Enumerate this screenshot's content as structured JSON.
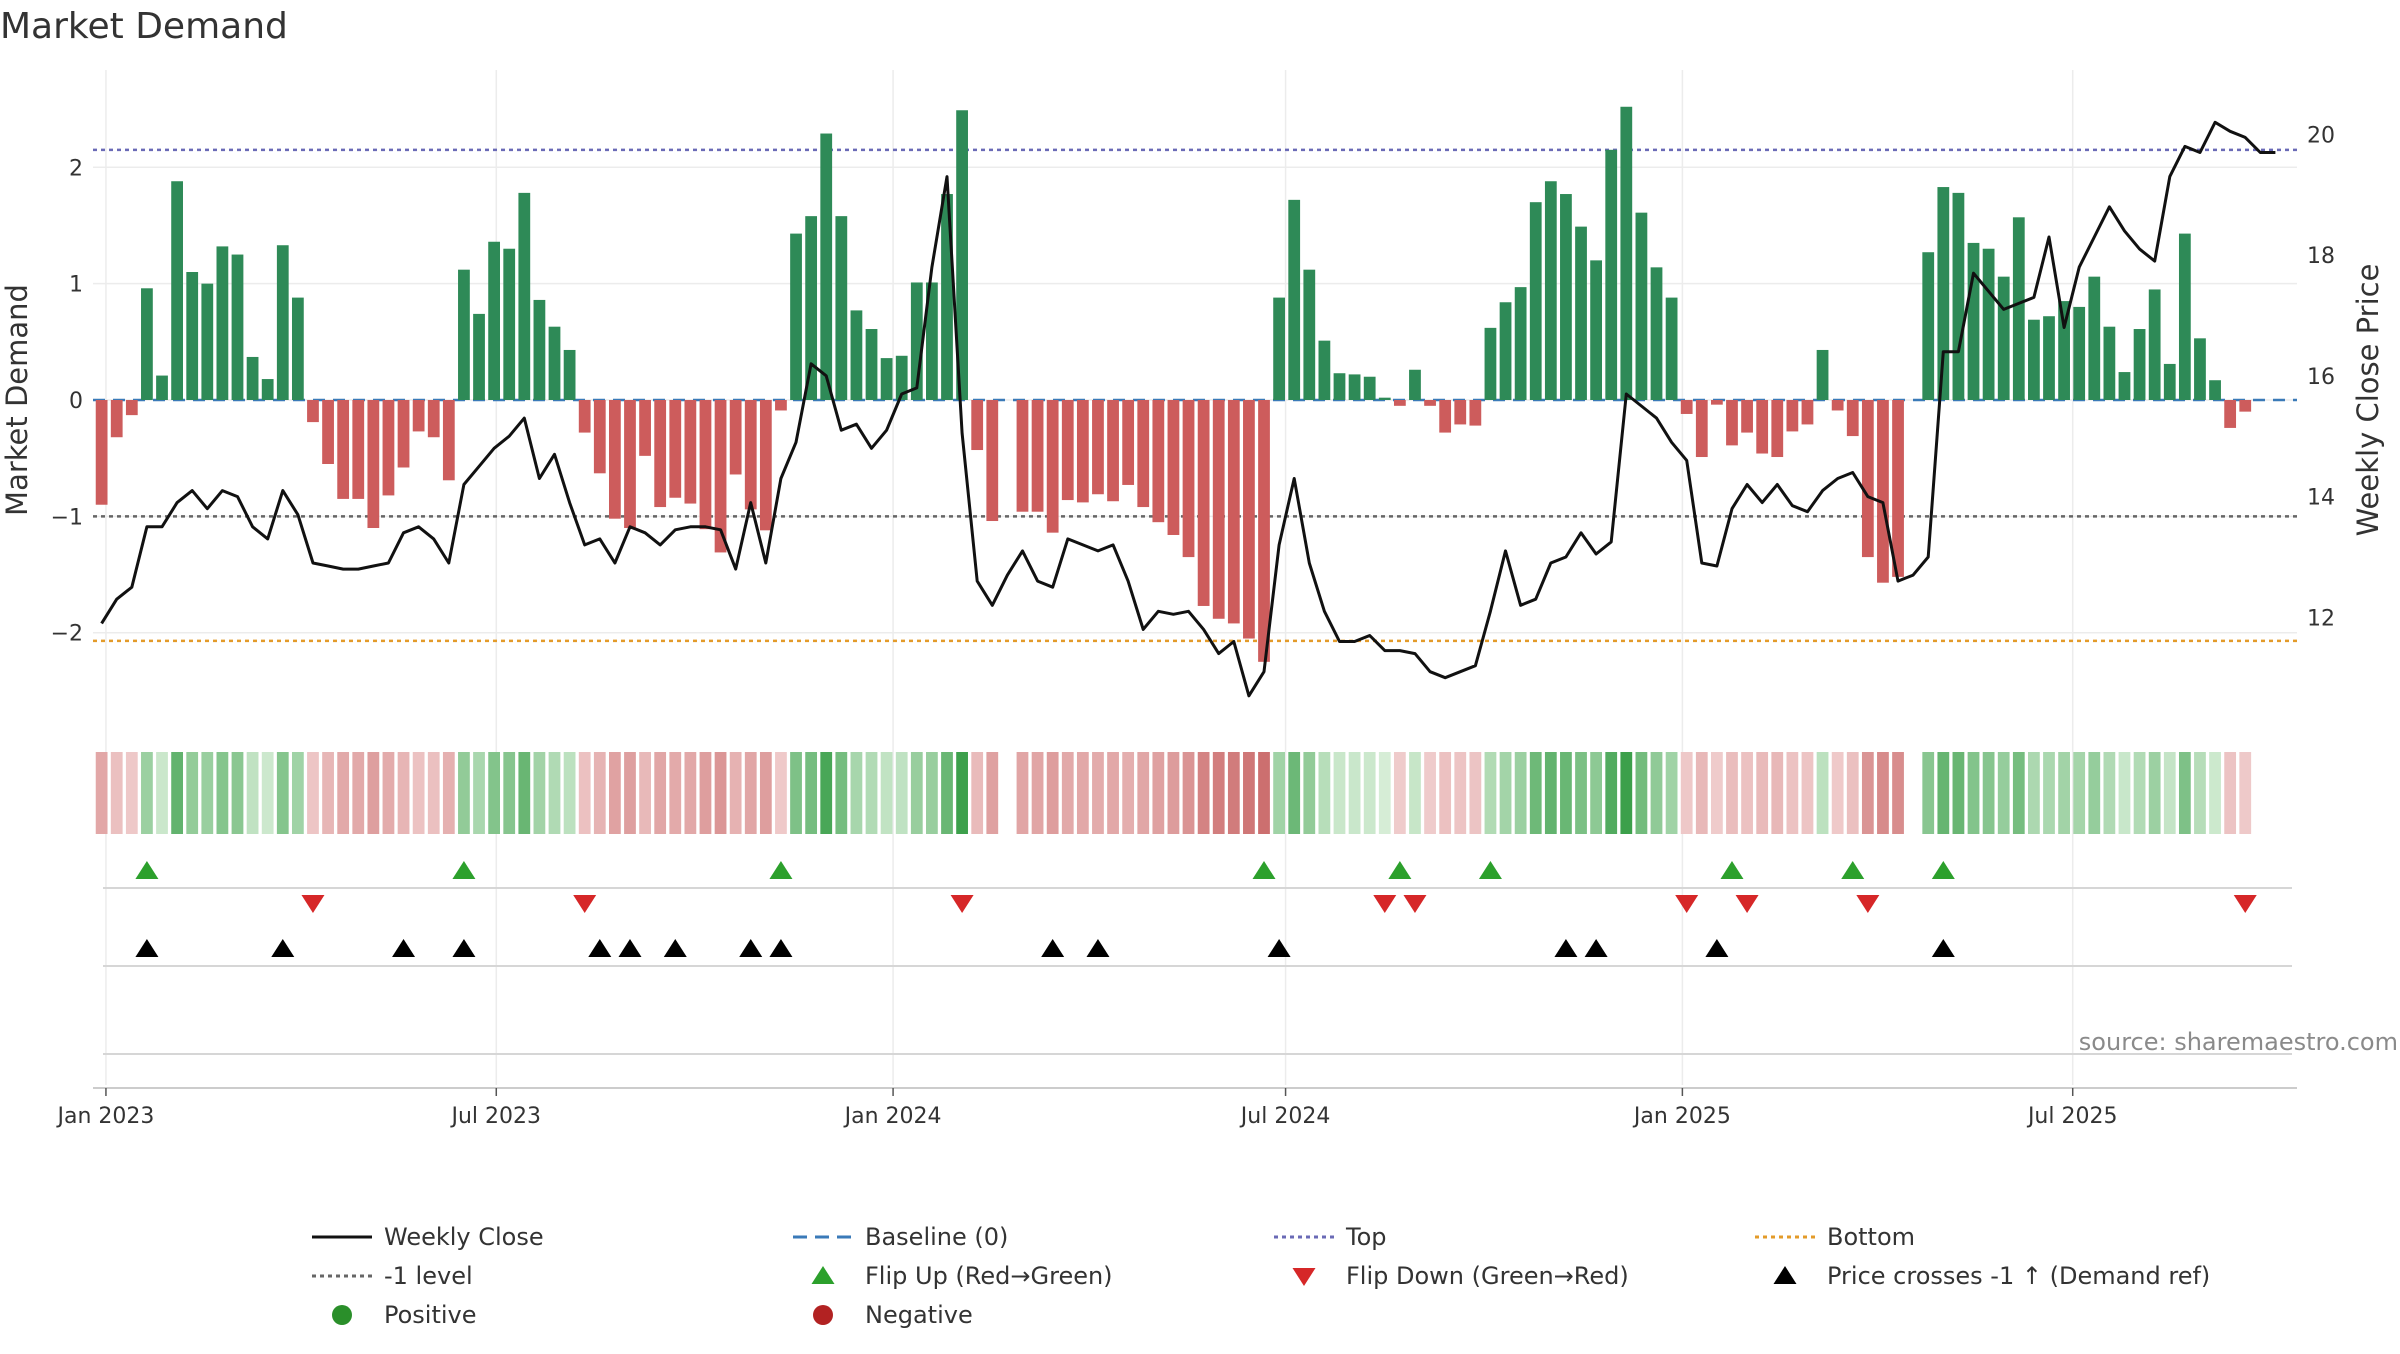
{
  "colors": {
    "positive_bar": "#2e8a57",
    "negative_bar": "#cd5c5c",
    "price_line": "#111111",
    "baseline": "#3a7ab8",
    "top_line": "#6a6ab6",
    "bottom_line": "#e39b2a",
    "minus_one_line": "#666666",
    "flip_up": "#2ca02c",
    "flip_down": "#d62728",
    "cross_marker": "#000000",
    "positive_dot": "#2a8f2a",
    "negative_dot": "#b22222",
    "grid": "#ececec"
  },
  "chart_data": {
    "type": "bar",
    "title": "Market Demand",
    "ylabel": "Market Demand",
    "y2label": "Weekly Close Price",
    "ylim": [
      -2.75,
      2.75
    ],
    "y_ticks": [
      -2,
      -1,
      0,
      1,
      2
    ],
    "y2lim": [
      10.3,
      20.9
    ],
    "y2_ticks": [
      12,
      14,
      16,
      18,
      20
    ],
    "x_start": "2022-12-26",
    "x_end": "2025-10-13",
    "x_ticks": [
      {
        "date": "2023-01-01",
        "label": "Jan 2023"
      },
      {
        "date": "2023-07-01",
        "label": "Jul 2023"
      },
      {
        "date": "2024-01-01",
        "label": "Jan 2024"
      },
      {
        "date": "2024-07-01",
        "label": "Jul 2024"
      },
      {
        "date": "2025-01-01",
        "label": "Jan 2025"
      },
      {
        "date": "2025-07-01",
        "label": "Jul 2025"
      }
    ],
    "first_week": "2022-12-30",
    "grid": true,
    "reference_lines": {
      "top": 2.15,
      "bottom": -2.07,
      "minus_one": -1.0,
      "baseline": 0
    },
    "demand": [
      -0.9,
      -0.32,
      -0.13,
      0.96,
      0.21,
      1.88,
      1.1,
      1.0,
      1.32,
      1.25,
      0.37,
      0.18,
      1.33,
      0.88,
      -0.19,
      -0.55,
      -0.85,
      -0.85,
      -1.1,
      -0.82,
      -0.58,
      -0.27,
      -0.32,
      -0.69,
      0,
      0,
      0,
      0,
      0,
      0,
      0,
      0,
      0,
      0,
      0,
      0,
      0,
      0,
      0,
      0,
      0,
      0,
      0,
      0,
      0,
      0,
      0,
      0,
      0,
      0,
      0,
      0,
      0,
      0,
      0,
      0,
      0,
      0,
      0,
      0,
      0,
      0,
      0,
      0,
      0,
      0,
      0,
      0,
      0,
      0,
      0,
      0,
      0,
      0,
      0,
      0,
      0,
      0,
      0,
      0,
      0,
      0,
      0,
      0,
      0,
      0,
      0,
      0,
      0,
      0,
      0,
      0,
      0,
      0,
      0,
      0,
      0,
      0,
      0,
      0,
      0,
      0,
      0,
      0,
      0,
      0,
      0,
      0,
      0,
      0,
      0,
      0,
      0,
      0,
      0,
      0,
      0,
      0,
      0,
      0,
      0,
      0,
      0,
      0,
      0,
      0,
      0,
      0,
      0,
      0,
      0,
      0,
      0,
      0,
      0,
      0,
      0,
      0,
      0,
      0,
      0,
      0,
      0,
      0,
      0,
      0,
      0,
      0,
      0,
      0,
      0
    ],
    "demand_values": [
      -0.9,
      -0.32,
      -0.13,
      0.96,
      0.21,
      1.88,
      1.1,
      1.0,
      1.32,
      1.25,
      0.37,
      0.18,
      1.33,
      0.88,
      -0.19,
      -0.55,
      -0.85,
      -0.85,
      -1.1,
      -0.82,
      -0.58,
      -0.27,
      -0.32,
      -0.69,
      1.12,
      0.74,
      1.36,
      1.3,
      1.78,
      0.86,
      0.63,
      0.43,
      -0.28,
      -0.63,
      -1.02,
      -1.1,
      -0.48,
      -0.92,
      -0.84,
      -0.89,
      -1.11,
      -1.31,
      -0.64,
      -0.94,
      -1.12,
      -0.09,
      1.43,
      1.58,
      2.29,
      1.58,
      0.77,
      0.61,
      0.36,
      0.38,
      1.01,
      1.01,
      1.77,
      2.49,
      -0.43,
      -1.04,
      0,
      -0.96,
      -0.96,
      -1.14,
      -0.86,
      -0.88,
      -0.81,
      -0.87,
      -0.73,
      -0.92,
      -1.05,
      -1.16,
      -1.35,
      -1.77,
      -1.88,
      -1.92,
      -2.05,
      -2.25,
      0.88,
      1.72,
      1.12,
      0.51,
      0.23,
      0.22,
      0.2,
      0.02,
      -0.05,
      0.26,
      -0.05,
      -0.28,
      -0.21,
      -0.22,
      0.62,
      0.84,
      0.97,
      1.7,
      1.88,
      1.77,
      1.49,
      1.2,
      2.15,
      2.52,
      1.61,
      1.14,
      0.88,
      -0.12,
      -0.49,
      -0.04,
      -0.39,
      -0.28,
      -0.46,
      -0.49,
      -0.27,
      -0.21,
      0.43,
      -0.09,
      -0.31,
      -1.35,
      -1.57,
      -1.52,
      0,
      1.27,
      1.83,
      1.78,
      1.35,
      1.3,
      1.06,
      1.57,
      0.69,
      0.72,
      0.85,
      0.8,
      1.06,
      0.63,
      0.24,
      0.61,
      0.95,
      0.31,
      1.43,
      0.53,
      0.17,
      -0.24,
      -0.1
    ],
    "price": [
      11.9,
      12.3,
      12.5,
      13.5,
      13.5,
      13.9,
      14.1,
      13.8,
      14.1,
      14.0,
      13.5,
      13.3,
      14.1,
      13.7,
      12.9,
      12.85,
      12.8,
      12.8,
      12.85,
      12.9,
      13.4,
      13.5,
      13.3,
      12.9,
      14.2,
      14.5,
      14.8,
      15.0,
      15.3,
      14.3,
      14.7,
      13.9,
      13.2,
      13.3,
      12.9,
      13.5,
      13.4,
      13.2,
      13.45,
      13.5,
      13.5,
      13.45,
      12.8,
      13.9,
      12.9,
      14.3,
      14.9,
      16.2,
      16.0,
      15.1,
      15.2,
      14.8,
      15.1,
      15.7,
      15.8,
      17.8,
      19.3,
      15.05,
      12.6,
      12.2,
      12.7,
      13.1,
      12.6,
      12.5,
      13.3,
      13.2,
      13.1,
      13.2,
      12.6,
      11.8,
      12.1,
      12.05,
      12.1,
      11.8,
      11.4,
      11.6,
      10.7,
      11.1,
      13.2,
      14.3,
      12.9,
      12.1,
      11.6,
      11.6,
      11.7,
      11.45,
      11.45,
      11.4,
      11.1,
      11.0,
      11.1,
      11.2,
      12.1,
      13.1,
      12.2,
      12.3,
      12.9,
      13.0,
      13.4,
      13.05,
      13.25,
      15.7,
      15.5,
      15.3,
      14.9,
      14.6,
      12.9,
      12.85,
      13.8,
      14.2,
      13.9,
      14.2,
      13.85,
      13.75,
      14.1,
      14.3,
      14.4,
      14.0,
      13.9,
      12.6,
      12.7,
      13.0,
      16.4,
      16.4,
      17.7,
      17.4,
      17.1,
      17.2,
      17.3,
      18.3,
      16.8,
      17.8,
      18.3,
      18.8,
      18.4,
      18.1,
      17.9,
      19.3,
      19.8,
      19.7,
      20.2,
      20.05,
      19.95,
      19.7,
      19.7
    ],
    "flip_up_weeks": [
      3,
      24,
      45,
      77,
      86,
      92,
      108,
      116,
      122
    ],
    "flip_down_weeks": [
      14,
      32,
      57,
      85,
      87,
      105,
      109,
      117,
      142
    ],
    "cross_weeks": [
      3,
      12,
      20,
      24,
      33,
      35,
      38,
      43,
      45,
      63,
      66,
      78,
      97,
      99,
      107,
      122
    ]
  },
  "source_label": "source: sharemaestro.com",
  "legend": [
    {
      "key": "close",
      "label": "Weekly Close",
      "kind": "line"
    },
    {
      "key": "baseline",
      "label": "Baseline (0)",
      "kind": "dash"
    },
    {
      "key": "top",
      "label": "Top",
      "kind": "dot"
    },
    {
      "key": "bottom",
      "label": "Bottom",
      "kind": "dot"
    },
    {
      "key": "minus_one",
      "label": "-1 level",
      "kind": "dot"
    },
    {
      "key": "flip_up",
      "label": "Flip Up (Red→Green)",
      "kind": "tri_up"
    },
    {
      "key": "flip_down",
      "label": "Flip Down (Green→Red)",
      "kind": "tri_down"
    },
    {
      "key": "cross",
      "label": "Price crosses -1 ↑ (Demand ref)",
      "kind": "tri_up"
    },
    {
      "key": "positive",
      "label": "Positive",
      "kind": "circle"
    },
    {
      "key": "negative",
      "label": "Negative",
      "kind": "circle"
    }
  ]
}
